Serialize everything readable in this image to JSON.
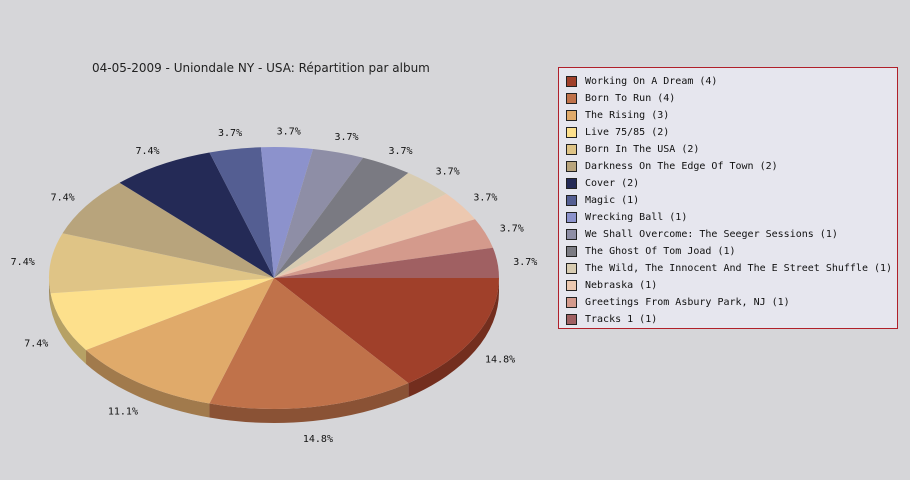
{
  "chart_data": {
    "type": "pie",
    "title": "04-05-2009 - Uniondale NY - USA:  Répartition par album",
    "slices": [
      {
        "label": "Working On A Dream (4)",
        "value": 4,
        "pct_label": "14.8%",
        "color": "#a0402a"
      },
      {
        "label": "Born To Run (4)",
        "value": 4,
        "pct_label": "14.8%",
        "color": "#c0724a"
      },
      {
        "label": "The Rising (3)",
        "value": 3,
        "pct_label": "11.1%",
        "color": "#e0aa6a"
      },
      {
        "label": "Live 75/85 (2)",
        "value": 2,
        "pct_label": "7.4%",
        "color": "#fde08c"
      },
      {
        "label": "Born In The USA (2)",
        "value": 2,
        "pct_label": "7.4%",
        "color": "#dfc486"
      },
      {
        "label": "Darkness On The Edge Of Town (2)",
        "value": 2,
        "pct_label": "7.4%",
        "color": "#b8a47c"
      },
      {
        "label": "Cover (2)",
        "value": 2,
        "pct_label": "7.4%",
        "color": "#242a56"
      },
      {
        "label": "Magic (1)",
        "value": 1,
        "pct_label": "3.7%",
        "color": "#545e92"
      },
      {
        "label": "Wrecking Ball (1)",
        "value": 1,
        "pct_label": "3.7%",
        "color": "#8c92cc"
      },
      {
        "label": "We Shall Overcome: The Seeger Sessions (1)",
        "value": 1,
        "pct_label": "3.7%",
        "color": "#8e8ea6"
      },
      {
        "label": "The Ghost Of Tom Joad (1)",
        "value": 1,
        "pct_label": "3.7%",
        "color": "#7a7a82"
      },
      {
        "label": "The Wild, The Innocent And The E Street Shuffle (1)",
        "value": 1,
        "pct_label": "3.7%",
        "color": "#d8ccb2"
      },
      {
        "label": "Nebraska (1)",
        "value": 1,
        "pct_label": "3.7%",
        "color": "#ecc8b0"
      },
      {
        "label": "Greetings From Asbury Park, NJ (1)",
        "value": 1,
        "pct_label": "3.7%",
        "color": "#d49a8c"
      },
      {
        "label": "Tracks 1 (1)",
        "value": 1,
        "pct_label": "3.7%",
        "color": "#a06062"
      }
    ],
    "legend_position": "right",
    "style": "3d"
  }
}
